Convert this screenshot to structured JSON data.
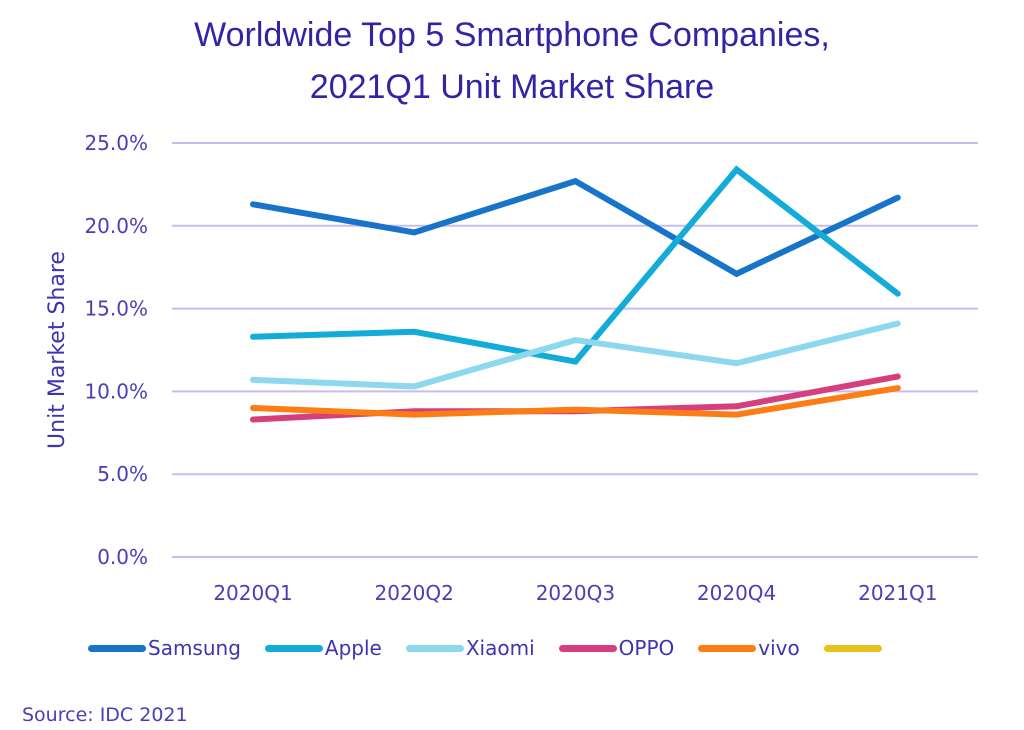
{
  "chart_data": {
    "type": "line",
    "title": "Worldwide Top 5 Smartphone Companies,",
    "subtitle": "2021Q1 Unit Market Share",
    "xlabel": "",
    "ylabel": "Unit Market Share",
    "categories": [
      "2020Q1",
      "2020Q2",
      "2020Q3",
      "2020Q4",
      "2021Q1"
    ],
    "ylim": [
      0,
      25
    ],
    "yticks": [
      0,
      5,
      10,
      15,
      20,
      25
    ],
    "ytick_labels": [
      "0.0%",
      "5.0%",
      "10.0%",
      "15.0%",
      "20.0%",
      "25.0%"
    ],
    "grid": true,
    "legend_position": "bottom",
    "series": [
      {
        "name": "Samsung",
        "color": "#1874c8",
        "values": [
          21.3,
          19.6,
          22.7,
          17.1,
          21.7
        ]
      },
      {
        "name": "Apple",
        "color": "#13acd8",
        "values": [
          13.3,
          13.6,
          11.8,
          23.4,
          15.9
        ]
      },
      {
        "name": "Xiaomi",
        "color": "#8dd8ee",
        "values": [
          10.7,
          10.3,
          13.1,
          11.7,
          14.1
        ]
      },
      {
        "name": "OPPO",
        "color": "#d63f7e",
        "values": [
          8.3,
          8.8,
          8.8,
          9.1,
          10.9
        ]
      },
      {
        "name": "vivo",
        "color": "#fb7d14",
        "values": [
          9.0,
          8.6,
          8.9,
          8.6,
          10.2
        ]
      },
      {
        "name": "",
        "color": "#e8c21a",
        "values": []
      }
    ],
    "source": "Source: IDC 2021"
  }
}
